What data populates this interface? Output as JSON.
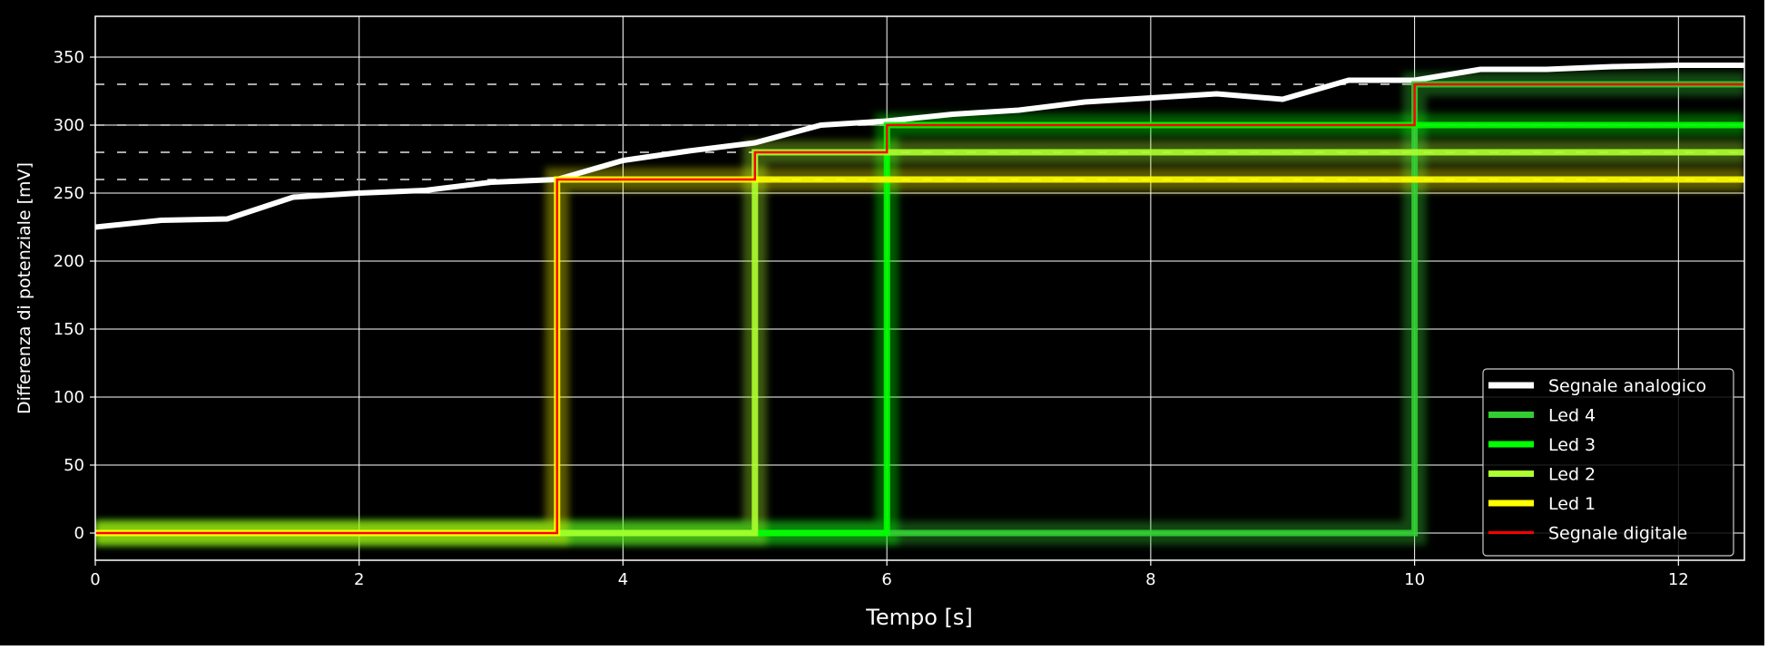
{
  "chart_data": {
    "type": "line",
    "xlabel": "Tempo [s]",
    "ylabel": "Differenza di potenziale [mV]",
    "xlim": [
      0,
      12.5
    ],
    "ylim": [
      -20,
      380
    ],
    "xticks": [
      0,
      2,
      4,
      6,
      8,
      10,
      12
    ],
    "xtick_labels": [
      "0",
      "2",
      "4",
      "6",
      "8",
      "10",
      "12"
    ],
    "yticks": [
      0,
      50,
      100,
      150,
      200,
      250,
      300,
      350
    ],
    "ytick_labels": [
      "0",
      "50",
      "100",
      "150",
      "200",
      "250",
      "300",
      "350"
    ],
    "grid": true,
    "legend_position": "lower-right",
    "background": "#000000",
    "thresholds": [
      260,
      280,
      300,
      330
    ],
    "series": [
      {
        "name": "Segnale analogico",
        "color": "#ffffff",
        "x": [
          0,
          0.5,
          1,
          1.5,
          2,
          2.5,
          3,
          3.5,
          4,
          4.5,
          5,
          5.5,
          6,
          6.5,
          7,
          7.5,
          8,
          8.5,
          9,
          9.5,
          10,
          10.5,
          11,
          11.5,
          12,
          12.5
        ],
        "y": [
          225,
          230,
          231,
          247,
          250,
          252,
          258,
          260,
          274,
          281,
          287,
          300,
          303,
          308,
          311,
          317,
          320,
          323,
          319,
          333,
          333,
          341,
          341,
          343,
          344,
          344
        ]
      },
      {
        "name": "Led 4",
        "color": "#32cd32",
        "x": [
          0,
          10,
          10,
          12.5
        ],
        "y": [
          0,
          0,
          330,
          330
        ]
      },
      {
        "name": "Led 3",
        "color": "#00ff00",
        "x": [
          0,
          6,
          6,
          12.5
        ],
        "y": [
          0,
          0,
          300,
          300
        ]
      },
      {
        "name": "Led 2",
        "color": "#adff2f",
        "x": [
          0,
          5,
          5,
          12.5
        ],
        "y": [
          0,
          0,
          280,
          280
        ]
      },
      {
        "name": "Led 1",
        "color": "#ffff00",
        "x": [
          0,
          3.5,
          3.5,
          12.5
        ],
        "y": [
          0,
          0,
          260,
          260
        ]
      },
      {
        "name": "Segnale digitale",
        "color": "#ff0000",
        "x": [
          0,
          3.5,
          3.5,
          5,
          5,
          6,
          6,
          10,
          10,
          12.5
        ],
        "y": [
          0,
          0,
          260,
          260,
          280,
          280,
          300,
          300,
          330,
          330
        ]
      }
    ]
  }
}
